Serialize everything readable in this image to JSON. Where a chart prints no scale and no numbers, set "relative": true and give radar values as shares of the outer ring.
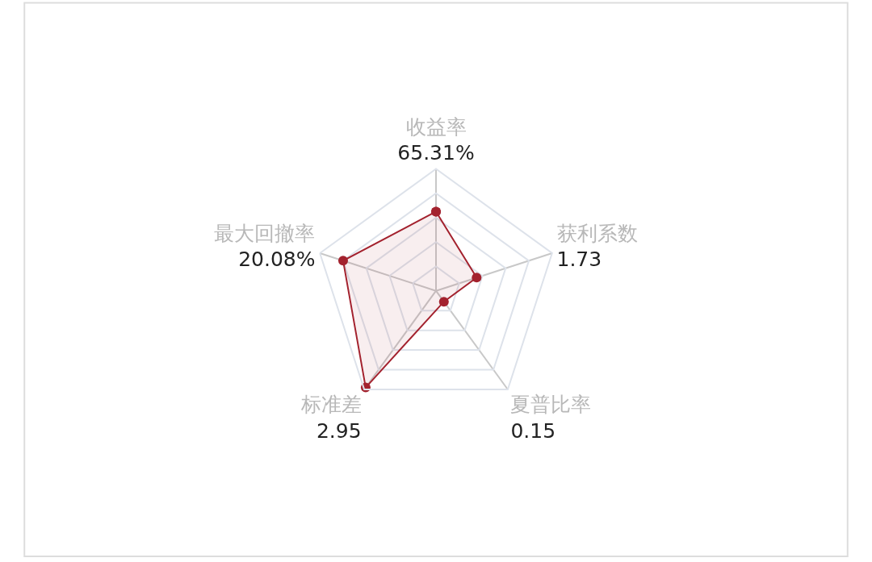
{
  "chart_data": {
    "type": "radar",
    "relative": true,
    "marker": "circle",
    "line_style": "solid",
    "grid": true,
    "categories": [
      "收益率\n65.31%",
      "获利系数\n1.73",
      "夏普比率\n0.15",
      "标准差\n2.95",
      "最大回撤率\n20.08%"
    ],
    "series": [
      {
        "color": "#a3222e",
        "values": [
          0.65,
          0.35,
          0.11,
          0.98,
          0.8
        ]
      }
    ]
  }
}
